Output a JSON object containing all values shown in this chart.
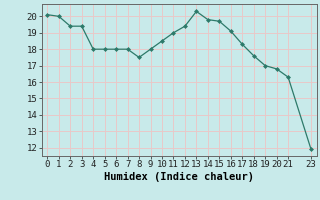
{
  "x": [
    0,
    1,
    2,
    3,
    4,
    5,
    6,
    7,
    8,
    9,
    10,
    11,
    12,
    13,
    14,
    15,
    16,
    17,
    18,
    19,
    20,
    21,
    23
  ],
  "y": [
    20.1,
    20.0,
    19.4,
    19.4,
    18.0,
    18.0,
    18.0,
    18.0,
    17.5,
    18.0,
    18.5,
    19.0,
    19.4,
    20.3,
    19.8,
    19.7,
    19.1,
    18.3,
    17.6,
    17.0,
    16.8,
    16.3,
    11.9
  ],
  "line_color": "#2d7a6a",
  "marker_color": "#2d7a6a",
  "bg_color": "#c8eaea",
  "grid_color": "#e8c8c8",
  "xlabel": "Humidex (Indice chaleur)",
  "xlim": [
    -0.5,
    23.5
  ],
  "ylim": [
    11.5,
    20.75
  ],
  "yticks": [
    12,
    13,
    14,
    15,
    16,
    17,
    18,
    19,
    20
  ],
  "xticks": [
    0,
    1,
    2,
    3,
    4,
    5,
    6,
    7,
    8,
    9,
    10,
    11,
    12,
    13,
    14,
    15,
    16,
    17,
    18,
    19,
    20,
    21,
    23
  ],
  "xlabel_fontsize": 7.5,
  "tick_fontsize": 6.5
}
